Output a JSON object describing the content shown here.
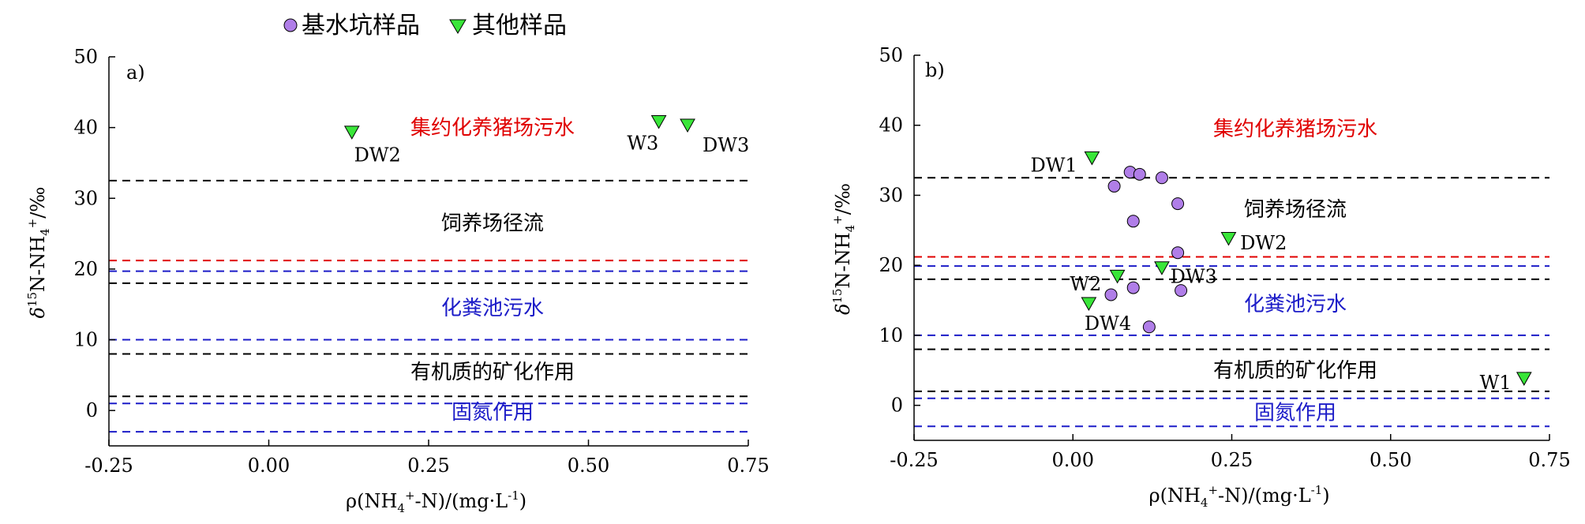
{
  "legend": {
    "items": [
      {
        "label": "基水坑样品",
        "marker": "circle",
        "color": "#b07ee8"
      },
      {
        "label": "其他样品",
        "marker": "triangle-down",
        "color": "#39e639"
      }
    ]
  },
  "colors": {
    "black_line": "#000000",
    "red_line": "#e00000",
    "blue_line": "#1c1cc8",
    "red_text": "#e00000",
    "blue_text": "#1c1cc8",
    "black_text": "#000000"
  },
  "chart_data": [
    {
      "type": "scatter",
      "panel": "a)",
      "xlabel": "ρ(NH4+-N)/(mg·L-1)",
      "ylabel": "δ15N-NH4+/‰",
      "xlim": [
        -0.25,
        0.75
      ],
      "ylim": [
        -5,
        50
      ],
      "xticks": [
        -0.25,
        0.0,
        0.25,
        0.5,
        0.75
      ],
      "xtick_labels": [
        "-0.25",
        "0.00",
        "0.25",
        "0.50",
        "0.75"
      ],
      "yticks": [
        0,
        10,
        20,
        30,
        40,
        50
      ],
      "ytick_labels": [
        "0",
        "10",
        "20",
        "30",
        "40",
        "50"
      ],
      "grid": false,
      "hlines": [
        {
          "y": 32.5,
          "color": "black"
        },
        {
          "y": 21.2,
          "color": "red"
        },
        {
          "y": 19.7,
          "color": "blue"
        },
        {
          "y": 18.0,
          "color": "black"
        },
        {
          "y": 10.0,
          "color": "blue"
        },
        {
          "y": 8.0,
          "color": "black"
        },
        {
          "y": 2.0,
          "color": "black"
        },
        {
          "y": 1.0,
          "color": "blue"
        },
        {
          "y": -3.0,
          "color": "blue"
        }
      ],
      "regions": [
        {
          "text": "集约化养猪场污水",
          "x": 0.35,
          "y": 39.0,
          "color": "red"
        },
        {
          "text": "饲养场径流",
          "x": 0.35,
          "y": 25.5,
          "color": "black"
        },
        {
          "text": "化粪池污水",
          "x": 0.35,
          "y": 13.5,
          "color": "blue"
        },
        {
          "text": "有机质的矿化作用",
          "x": 0.35,
          "y": 4.5,
          "color": "black"
        },
        {
          "text": "固氮作用",
          "x": 0.35,
          "y": -1.2,
          "color": "blue"
        }
      ],
      "series": [
        {
          "name": "基水坑样品",
          "marker": "circle",
          "points": []
        },
        {
          "name": "其他样品",
          "marker": "triangle-down",
          "points": [
            {
              "x": 0.13,
              "y": 39.3,
              "label": "DW2",
              "label_x": 0.17,
              "label_y": 35.2
            },
            {
              "x": 0.61,
              "y": 40.8,
              "label": "W3",
              "label_x": 0.585,
              "label_y": 36.9
            },
            {
              "x": 0.655,
              "y": 40.3,
              "label": "DW3",
              "label_x": 0.715,
              "label_y": 36.6
            }
          ]
        }
      ]
    },
    {
      "type": "scatter",
      "panel": "b)",
      "xlabel": "ρ(NH4+-N)/(mg·L-1)",
      "ylabel": "δ15N-NH4+/‰",
      "xlim": [
        -0.25,
        0.75
      ],
      "ylim": [
        -5,
        50
      ],
      "xticks": [
        -0.25,
        0.0,
        0.25,
        0.5,
        0.75
      ],
      "xtick_labels": [
        "-0.25",
        "0.00",
        "0.25",
        "0.50",
        "0.75"
      ],
      "yticks": [
        0,
        10,
        20,
        30,
        40,
        50
      ],
      "ytick_labels": [
        "0",
        "10",
        "20",
        "30",
        "40",
        "50"
      ],
      "grid": false,
      "hlines": [
        {
          "y": 32.5,
          "color": "black"
        },
        {
          "y": 21.2,
          "color": "red"
        },
        {
          "y": 19.9,
          "color": "blue"
        },
        {
          "y": 18.0,
          "color": "black"
        },
        {
          "y": 10.0,
          "color": "blue"
        },
        {
          "y": 8.0,
          "color": "black"
        },
        {
          "y": 2.0,
          "color": "black"
        },
        {
          "y": 1.0,
          "color": "blue"
        },
        {
          "y": -3.0,
          "color": "blue"
        }
      ],
      "regions": [
        {
          "text": "集约化养猪场污水",
          "x": 0.35,
          "y": 38.5,
          "color": "red"
        },
        {
          "text": "饲养场径流",
          "x": 0.35,
          "y": 27.0,
          "color": "black"
        },
        {
          "text": "化粪池污水",
          "x": 0.35,
          "y": 13.5,
          "color": "blue"
        },
        {
          "text": "有机质的矿化作用",
          "x": 0.35,
          "y": 4.0,
          "color": "black"
        },
        {
          "text": "固氮作用",
          "x": 0.35,
          "y": -2.0,
          "color": "blue"
        }
      ],
      "series": [
        {
          "name": "基水坑样品",
          "marker": "circle",
          "points": [
            {
              "x": 0.09,
              "y": 33.3
            },
            {
              "x": 0.105,
              "y": 33.0
            },
            {
              "x": 0.14,
              "y": 32.5
            },
            {
              "x": 0.065,
              "y": 31.3
            },
            {
              "x": 0.165,
              "y": 28.8
            },
            {
              "x": 0.095,
              "y": 26.3
            },
            {
              "x": 0.165,
              "y": 21.8
            },
            {
              "x": 0.095,
              "y": 16.8
            },
            {
              "x": 0.17,
              "y": 16.4
            },
            {
              "x": 0.06,
              "y": 15.8
            },
            {
              "x": 0.12,
              "y": 11.2
            }
          ]
        },
        {
          "name": "其他样品",
          "marker": "triangle-down",
          "points": [
            {
              "x": 0.03,
              "y": 35.3,
              "label": "DW1",
              "label_x": -0.03,
              "label_y": 33.4
            },
            {
              "x": 0.245,
              "y": 23.8,
              "label": "DW2",
              "label_x": 0.3,
              "label_y": 22.3
            },
            {
              "x": 0.07,
              "y": 18.4,
              "label": "W2",
              "label_x": 0.02,
              "label_y": 16.4
            },
            {
              "x": 0.14,
              "y": 19.6,
              "label": "DW3",
              "label_x": 0.19,
              "label_y": 17.5
            },
            {
              "x": 0.025,
              "y": 14.5,
              "label": "DW4",
              "label_x": 0.055,
              "label_y": 10.8
            },
            {
              "x": 0.71,
              "y": 3.8,
              "label": "W1",
              "label_x": 0.665,
              "label_y": 2.3
            }
          ]
        }
      ]
    }
  ]
}
